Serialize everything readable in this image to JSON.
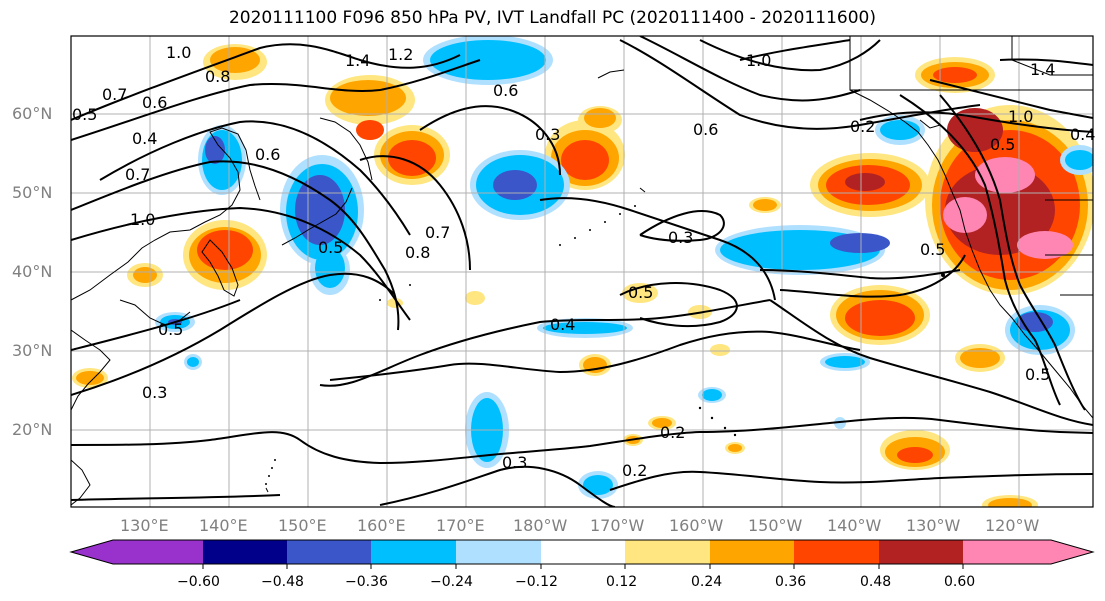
{
  "title": "2020111100 F096 850 hPa PV, IVT Landfall PC (2020111400 - 2020111600)",
  "lat_labels": [
    "60°N",
    "50°N",
    "40°N",
    "30°N",
    "20°N"
  ],
  "lon_labels": [
    "130°E",
    "140°E",
    "150°E",
    "160°E",
    "170°E",
    "180°W",
    "170°W",
    "160°W",
    "150°W",
    "140°W",
    "130°W",
    "120°W"
  ],
  "colorbar": {
    "tick_labels": [
      "−0.60",
      "−0.48",
      "−0.36",
      "−0.24",
      "−0.12",
      "0.12",
      "0.24",
      "0.36",
      "0.48",
      "0.60"
    ],
    "colors": [
      "#9932cc",
      "#00008b",
      "#3a56c9",
      "#00bfff",
      "#b0e0ff",
      "#ffffff",
      "#ffe680",
      "#ffa500",
      "#ff4500",
      "#b22222",
      "#ff85b3"
    ]
  },
  "contour_labels": [
    "1.0",
    "1.2",
    "1.4",
    "0.8",
    "0.7",
    "0.6",
    "0.5",
    "0.4",
    "0.7",
    "1.0",
    "0.6",
    "0.8",
    "0.5",
    "0.7",
    "0.6",
    "0.3",
    "1.0",
    "0.6",
    "0.2",
    "0.3",
    "0.5",
    "0.4",
    "0.2",
    "0.2",
    "0.5",
    "0.3",
    "0.5",
    "1.0",
    "1.4",
    "0.4",
    "0.5",
    "0.5",
    "0.3"
  ]
}
